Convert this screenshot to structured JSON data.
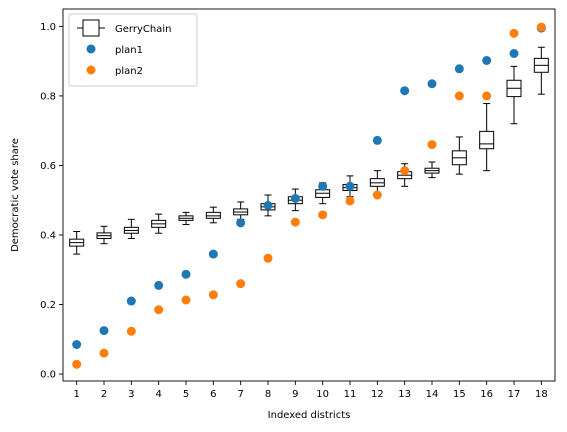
{
  "chart_data": {
    "type": "scatter",
    "title": "",
    "xlabel": "Indexed districts",
    "ylabel": "Democratic vote share",
    "xlim": [
      0.5,
      18.5
    ],
    "ylim": [
      -0.02,
      1.05
    ],
    "categories": [
      "1",
      "2",
      "3",
      "4",
      "5",
      "6",
      "7",
      "8",
      "9",
      "10",
      "11",
      "12",
      "13",
      "14",
      "15",
      "16",
      "17",
      "18"
    ],
    "yticks": [
      "0.0",
      "0.2",
      "0.4",
      "0.6",
      "0.8",
      "1.0"
    ],
    "ytick_values": [
      0.0,
      0.2,
      0.4,
      0.6,
      0.8,
      1.0
    ],
    "boxplot": {
      "name": "GerryChain",
      "color": "#000000",
      "boxes": [
        {
          "whislo": 0.345,
          "q1": 0.368,
          "med": 0.378,
          "q3": 0.388,
          "whishi": 0.41
        },
        {
          "whislo": 0.375,
          "q1": 0.39,
          "med": 0.398,
          "q3": 0.406,
          "whishi": 0.425
        },
        {
          "whislo": 0.39,
          "q1": 0.405,
          "med": 0.413,
          "q3": 0.422,
          "whishi": 0.445
        },
        {
          "whislo": 0.405,
          "q1": 0.422,
          "med": 0.432,
          "q3": 0.442,
          "whishi": 0.46
        },
        {
          "whislo": 0.43,
          "q1": 0.442,
          "med": 0.448,
          "q3": 0.455,
          "whishi": 0.465
        },
        {
          "whislo": 0.435,
          "q1": 0.448,
          "med": 0.455,
          "q3": 0.465,
          "whishi": 0.48
        },
        {
          "whislo": 0.445,
          "q1": 0.458,
          "med": 0.466,
          "q3": 0.475,
          "whishi": 0.495
        },
        {
          "whislo": 0.455,
          "q1": 0.472,
          "med": 0.481,
          "q3": 0.49,
          "whishi": 0.515
        },
        {
          "whislo": 0.47,
          "q1": 0.49,
          "med": 0.5,
          "q3": 0.51,
          "whishi": 0.532
        },
        {
          "whislo": 0.49,
          "q1": 0.508,
          "med": 0.52,
          "q3": 0.53,
          "whishi": 0.55
        },
        {
          "whislo": 0.51,
          "q1": 0.528,
          "med": 0.536,
          "q3": 0.545,
          "whishi": 0.57
        },
        {
          "whislo": 0.52,
          "q1": 0.54,
          "med": 0.55,
          "q3": 0.562,
          "whishi": 0.585
        },
        {
          "whislo": 0.54,
          "q1": 0.562,
          "med": 0.572,
          "q3": 0.582,
          "whishi": 0.605
        },
        {
          "whislo": 0.565,
          "q1": 0.578,
          "med": 0.585,
          "q3": 0.592,
          "whishi": 0.61
        },
        {
          "whislo": 0.575,
          "q1": 0.602,
          "med": 0.622,
          "q3": 0.642,
          "whishi": 0.682
        },
        {
          "whislo": 0.585,
          "q1": 0.648,
          "med": 0.662,
          "q3": 0.698,
          "whishi": 0.778
        },
        {
          "whislo": 0.72,
          "q1": 0.798,
          "med": 0.822,
          "q3": 0.845,
          "whishi": 0.885
        },
        {
          "whislo": 0.805,
          "q1": 0.868,
          "med": 0.888,
          "q3": 0.908,
          "whishi": 0.94
        }
      ]
    },
    "series": [
      {
        "name": "plan1",
        "color": "#1f77b4",
        "values": [
          0.085,
          0.125,
          0.21,
          0.255,
          0.287,
          0.345,
          0.435,
          0.485,
          0.505,
          0.54,
          0.54,
          0.672,
          0.815,
          0.835,
          0.878,
          0.902,
          0.922,
          0.995
        ]
      },
      {
        "name": "plan2",
        "color": "#ff7f0e",
        "values": [
          0.028,
          0.06,
          0.123,
          0.185,
          0.213,
          0.228,
          0.26,
          0.333,
          0.437,
          0.458,
          0.498,
          0.515,
          0.585,
          0.66,
          0.8,
          0.8,
          0.98,
          0.998
        ]
      }
    ],
    "legend_position": "top-left",
    "grid": false
  }
}
